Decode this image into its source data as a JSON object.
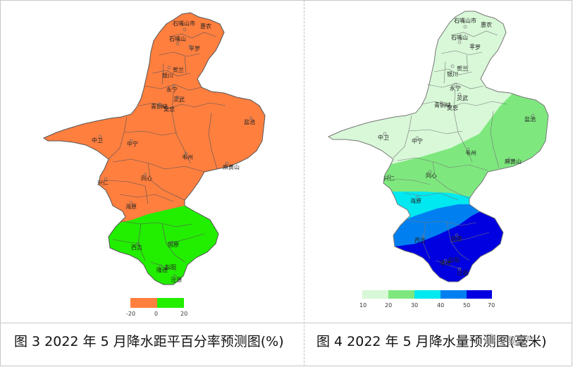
{
  "left_panel": {
    "caption": "图 3 2022 年 5 月降水距平百分率预测图(%)",
    "legend": {
      "ticks": [
        "-20",
        "0",
        "20"
      ],
      "colors": [
        "#ff7f3f",
        "#22ee00"
      ]
    },
    "colors": {
      "orange": "#ff7f3f",
      "green": "#22ee00",
      "border": "#555555"
    },
    "cities": [
      "石嘴山市",
      "惠农",
      "石嘴山",
      "平罗",
      "贺兰",
      "银川",
      "永宁",
      "灵武",
      "青铜峡",
      "吴忠",
      "盐池",
      "中卫",
      "中宁",
      "同心",
      "韦州",
      "麻黄山",
      "兴仁",
      "西吉",
      "海原",
      "固原",
      "泾源",
      "隆德",
      "彭阳"
    ]
  },
  "right_panel": {
    "caption": "图 4 2022 年 5 月降水量预测图(毫米)",
    "legend": {
      "ticks": [
        "10",
        "20",
        "30",
        "40",
        "50",
        "70"
      ],
      "colors": [
        "#d8f8d8",
        "#7ee87e",
        "#00e8f0",
        "#0080f0",
        "#0000e0"
      ]
    },
    "cities": [
      "石嘴山市",
      "惠农",
      "石嘴山",
      "平罗",
      "贺兰",
      "银川",
      "永宁",
      "灵武",
      "青铜峡",
      "吴忠",
      "盐池",
      "中卫",
      "中宁",
      "同心",
      "韦州",
      "麻黄山",
      "兴仁",
      "西吉",
      "海原",
      "固原",
      "泾源",
      "隆德",
      "彭阳"
    ]
  },
  "watermark": "宁夏天气"
}
